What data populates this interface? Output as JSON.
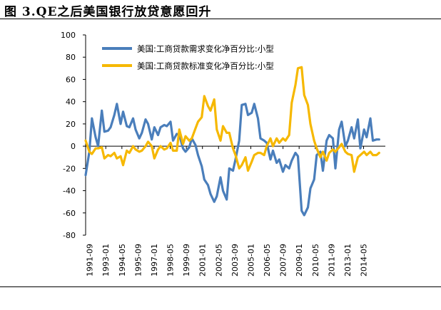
{
  "page": {
    "title": "图 3.QE之后美国银行放贷意愿回升"
  },
  "colors": {
    "demand": "#4a7ebb",
    "standard": "#f6b800",
    "axis": "#000000"
  },
  "chart_data": {
    "type": "line",
    "title": "图 3.QE之后美国银行放贷意愿回升",
    "xlabel": "",
    "ylabel": "",
    "ylim": [
      -80,
      100
    ],
    "yticks": [
      100,
      80,
      60,
      40,
      20,
      0,
      -20,
      -40,
      -60,
      -80
    ],
    "grid": false,
    "legend_position": "top-left",
    "x_range": [
      1991.5,
      2015.5
    ],
    "x_tick_labels": [
      "1991-09",
      "1993-01",
      "1994-05",
      "1995-09",
      "1997-01",
      "1998-05",
      "1999-09",
      "2001-01",
      "2002-05",
      "2003-09",
      "2005-01",
      "2006-05",
      "2007-09",
      "2009-01",
      "2010-05",
      "2011-09",
      "2013-01",
      "2014-05"
    ],
    "series": [
      {
        "name": "美国:工商贷款需求变化净百分比:小型",
        "color": "#4a7ebb",
        "points": [
          [
            1991.5,
            -26
          ],
          [
            1991.8,
            -5
          ],
          [
            1992.0,
            25
          ],
          [
            1992.3,
            8
          ],
          [
            1992.5,
            0
          ],
          [
            1992.8,
            32
          ],
          [
            1993.0,
            13
          ],
          [
            1993.3,
            14
          ],
          [
            1993.5,
            17
          ],
          [
            1993.8,
            28
          ],
          [
            1994.0,
            38
          ],
          [
            1994.3,
            20
          ],
          [
            1994.5,
            31
          ],
          [
            1994.8,
            18
          ],
          [
            1995.0,
            17
          ],
          [
            1995.3,
            25
          ],
          [
            1995.5,
            15
          ],
          [
            1995.8,
            7
          ],
          [
            1996.0,
            12
          ],
          [
            1996.3,
            24
          ],
          [
            1996.5,
            20
          ],
          [
            1996.8,
            6
          ],
          [
            1997.0,
            17
          ],
          [
            1997.3,
            10
          ],
          [
            1997.5,
            17
          ],
          [
            1997.8,
            19
          ],
          [
            1998.0,
            18
          ],
          [
            1998.3,
            22
          ],
          [
            1998.5,
            5
          ],
          [
            1998.8,
            11
          ],
          [
            1999.0,
            10
          ],
          [
            1999.3,
            -2
          ],
          [
            1999.5,
            -5
          ],
          [
            1999.8,
            -1
          ],
          [
            2000.0,
            7
          ],
          [
            2000.3,
            1
          ],
          [
            2000.5,
            -8
          ],
          [
            2000.8,
            -18
          ],
          [
            2001.0,
            -30
          ],
          [
            2001.3,
            -35
          ],
          [
            2001.5,
            -43
          ],
          [
            2001.8,
            -50
          ],
          [
            2002.0,
            -45
          ],
          [
            2002.3,
            -28
          ],
          [
            2002.5,
            -40
          ],
          [
            2002.8,
            -48
          ],
          [
            2003.0,
            -20
          ],
          [
            2003.3,
            -22
          ],
          [
            2003.5,
            -12
          ],
          [
            2003.8,
            5
          ],
          [
            2004.0,
            37
          ],
          [
            2004.3,
            38
          ],
          [
            2004.5,
            28
          ],
          [
            2004.8,
            30
          ],
          [
            2005.0,
            38
          ],
          [
            2005.3,
            25
          ],
          [
            2005.5,
            7
          ],
          [
            2005.8,
            5
          ],
          [
            2006.0,
            3
          ],
          [
            2006.3,
            -12
          ],
          [
            2006.5,
            -4
          ],
          [
            2006.8,
            -15
          ],
          [
            2007.0,
            -12
          ],
          [
            2007.3,
            -23
          ],
          [
            2007.5,
            -17
          ],
          [
            2007.8,
            -20
          ],
          [
            2008.0,
            -13
          ],
          [
            2008.3,
            -6
          ],
          [
            2008.5,
            -9
          ],
          [
            2008.8,
            -58
          ],
          [
            2009.0,
            -62
          ],
          [
            2009.3,
            -55
          ],
          [
            2009.5,
            -38
          ],
          [
            2009.8,
            -30
          ],
          [
            2010.0,
            -8
          ],
          [
            2010.3,
            -5
          ],
          [
            2010.5,
            -22
          ],
          [
            2010.8,
            5
          ],
          [
            2011.0,
            10
          ],
          [
            2011.3,
            7
          ],
          [
            2011.5,
            -20
          ],
          [
            2011.8,
            15
          ],
          [
            2012.0,
            22
          ],
          [
            2012.3,
            0
          ],
          [
            2012.5,
            5
          ],
          [
            2012.8,
            17
          ],
          [
            2013.0,
            7
          ],
          [
            2013.3,
            24
          ],
          [
            2013.5,
            -2
          ],
          [
            2013.8,
            15
          ],
          [
            2014.0,
            8
          ],
          [
            2014.3,
            25
          ],
          [
            2014.5,
            5
          ],
          [
            2014.8,
            6
          ],
          [
            2015.0,
            6
          ]
        ]
      },
      {
        "name": "美国:工商贷款标准变化净百分比:小型",
        "color": "#f6b800",
        "points": [
          [
            1991.5,
            5
          ],
          [
            1991.8,
            -5
          ],
          [
            1992.0,
            -7
          ],
          [
            1992.3,
            -2
          ],
          [
            1992.5,
            -2
          ],
          [
            1992.8,
            -1
          ],
          [
            1993.0,
            -11
          ],
          [
            1993.3,
            -8
          ],
          [
            1993.5,
            -9
          ],
          [
            1993.8,
            -6
          ],
          [
            1994.0,
            -11
          ],
          [
            1994.3,
            -9
          ],
          [
            1994.5,
            -17
          ],
          [
            1994.8,
            -4
          ],
          [
            1995.0,
            -6
          ],
          [
            1995.3,
            0
          ],
          [
            1995.5,
            -3
          ],
          [
            1995.8,
            -5
          ],
          [
            1996.0,
            -4
          ],
          [
            1996.3,
            0
          ],
          [
            1996.5,
            4
          ],
          [
            1996.8,
            0
          ],
          [
            1997.0,
            -11
          ],
          [
            1997.3,
            -3
          ],
          [
            1997.5,
            0
          ],
          [
            1997.8,
            -3
          ],
          [
            1998.0,
            -2
          ],
          [
            1998.3,
            3
          ],
          [
            1998.5,
            -4
          ],
          [
            1998.8,
            -4
          ],
          [
            1999.0,
            15
          ],
          [
            1999.3,
            2
          ],
          [
            1999.5,
            9
          ],
          [
            1999.8,
            5
          ],
          [
            2000.0,
            7
          ],
          [
            2000.3,
            16
          ],
          [
            2000.5,
            22
          ],
          [
            2000.8,
            26
          ],
          [
            2001.0,
            45
          ],
          [
            2001.3,
            36
          ],
          [
            2001.5,
            32
          ],
          [
            2001.8,
            42
          ],
          [
            2002.0,
            15
          ],
          [
            2002.3,
            5
          ],
          [
            2002.5,
            18
          ],
          [
            2002.8,
            12
          ],
          [
            2003.0,
            12
          ],
          [
            2003.3,
            -2
          ],
          [
            2003.5,
            -8
          ],
          [
            2003.8,
            -20
          ],
          [
            2004.0,
            -17
          ],
          [
            2004.3,
            -10
          ],
          [
            2004.5,
            -22
          ],
          [
            2004.8,
            -14
          ],
          [
            2005.0,
            -8
          ],
          [
            2005.3,
            -6
          ],
          [
            2005.5,
            -6
          ],
          [
            2005.8,
            -8
          ],
          [
            2006.0,
            0
          ],
          [
            2006.3,
            7
          ],
          [
            2006.5,
            0
          ],
          [
            2006.8,
            7
          ],
          [
            2007.0,
            3
          ],
          [
            2007.3,
            7
          ],
          [
            2007.5,
            5
          ],
          [
            2007.8,
            10
          ],
          [
            2008.0,
            39
          ],
          [
            2008.3,
            55
          ],
          [
            2008.5,
            70
          ],
          [
            2008.8,
            71
          ],
          [
            2009.0,
            46
          ],
          [
            2009.3,
            37
          ],
          [
            2009.5,
            20
          ],
          [
            2009.8,
            5
          ],
          [
            2010.0,
            -2
          ],
          [
            2010.3,
            -10
          ],
          [
            2010.5,
            -5
          ],
          [
            2010.8,
            -13
          ],
          [
            2011.0,
            -6
          ],
          [
            2011.3,
            -3
          ],
          [
            2011.5,
            -5
          ],
          [
            2011.8,
            -1
          ],
          [
            2012.0,
            2
          ],
          [
            2012.3,
            -5
          ],
          [
            2012.5,
            -7
          ],
          [
            2012.8,
            -8
          ],
          [
            2013.0,
            -23
          ],
          [
            2013.3,
            -10
          ],
          [
            2013.5,
            -8
          ],
          [
            2013.8,
            -5
          ],
          [
            2014.0,
            -8
          ],
          [
            2014.3,
            -5
          ],
          [
            2014.5,
            -8
          ],
          [
            2014.8,
            -8
          ],
          [
            2015.0,
            -6
          ]
        ]
      }
    ]
  }
}
